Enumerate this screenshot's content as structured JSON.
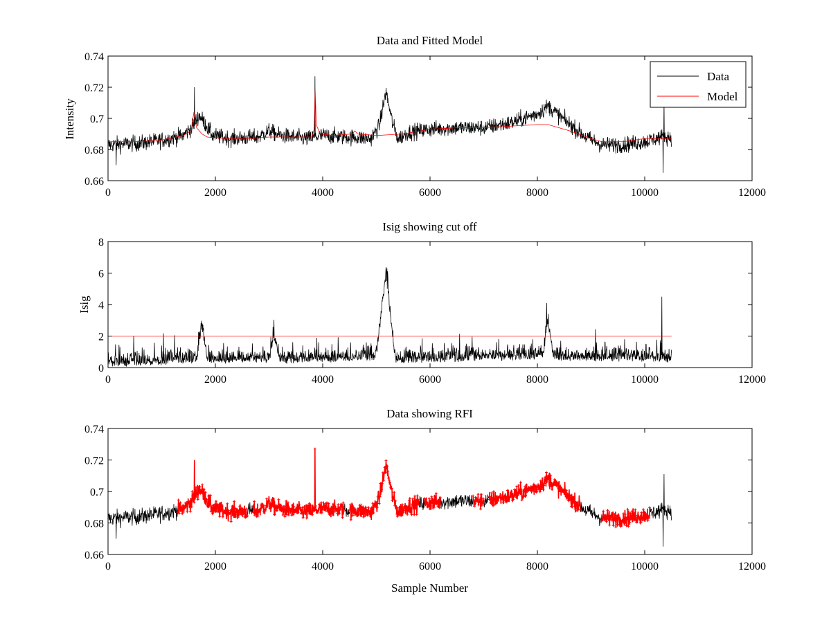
{
  "chart_data": [
    {
      "type": "line",
      "title": "Data and Fitted Model",
      "xlabel": "",
      "ylabel": "Intensity",
      "xlim": [
        0,
        12000
      ],
      "ylim": [
        0.66,
        0.74
      ],
      "xticks": [
        0,
        2000,
        4000,
        6000,
        8000,
        10000,
        12000
      ],
      "xtick_labels": [
        "0",
        "2000",
        "4000",
        "6000",
        "8000",
        "10000",
        "12000"
      ],
      "yticks": [
        0.66,
        0.68,
        0.7,
        0.72,
        0.74
      ],
      "ytick_labels": [
        "0.66",
        "0.68",
        "0.7",
        "0.72",
        "0.74"
      ],
      "grid": false,
      "legend": {
        "position": "top-right",
        "entries": [
          {
            "label": "Data",
            "color": "#000000"
          },
          {
            "label": "Model",
            "color": "#ff0000"
          }
        ]
      },
      "series": [
        {
          "name": "Data",
          "color": "#000000",
          "kind": "noisy",
          "x_range": [
            0,
            10500
          ],
          "noise_amplitude": 0.0055,
          "baseline": [
            [
              0,
              0.683
            ],
            [
              600,
              0.684
            ],
            [
              1000,
              0.686
            ],
            [
              1400,
              0.689
            ],
            [
              1560,
              0.694
            ],
            [
              1700,
              0.702
            ],
            [
              1800,
              0.697
            ],
            [
              1950,
              0.689
            ],
            [
              2300,
              0.687
            ],
            [
              2800,
              0.688
            ],
            [
              3000,
              0.692
            ],
            [
              3200,
              0.689
            ],
            [
              3700,
              0.687
            ],
            [
              3850,
              0.688
            ],
            [
              4000,
              0.689
            ],
            [
              4500,
              0.688
            ],
            [
              4900,
              0.687
            ],
            [
              5050,
              0.695
            ],
            [
              5180,
              0.717
            ],
            [
              5300,
              0.697
            ],
            [
              5400,
              0.687
            ],
            [
              5600,
              0.691
            ],
            [
              6000,
              0.693
            ],
            [
              6500,
              0.694
            ],
            [
              7000,
              0.694
            ],
            [
              7500,
              0.697
            ],
            [
              8000,
              0.703
            ],
            [
              8200,
              0.708
            ],
            [
              8500,
              0.699
            ],
            [
              8900,
              0.688
            ],
            [
              9200,
              0.683
            ],
            [
              9600,
              0.683
            ],
            [
              10000,
              0.685
            ],
            [
              10300,
              0.688
            ],
            [
              10500,
              0.688
            ]
          ],
          "spikes": [
            [
              1610,
              0.72
            ],
            [
              3855,
              0.727
            ],
            [
              10340,
              0.665
            ],
            [
              10360,
              0.711
            ],
            [
              150,
              0.67
            ]
          ]
        },
        {
          "name": "Model",
          "color": "#ff0000",
          "points": [
            [
              0,
              0.685
            ],
            [
              500,
              0.685
            ],
            [
              1000,
              0.686
            ],
            [
              1400,
              0.689
            ],
            [
              1550,
              0.692
            ],
            [
              1600,
              0.704
            ],
            [
              1650,
              0.694
            ],
            [
              1750,
              0.69
            ],
            [
              1850,
              0.688
            ],
            [
              2200,
              0.687
            ],
            [
              2600,
              0.687
            ],
            [
              3000,
              0.688
            ],
            [
              3500,
              0.688
            ],
            [
              3800,
              0.688
            ],
            [
              3840,
              0.693
            ],
            [
              3860,
              0.718
            ],
            [
              3880,
              0.696
            ],
            [
              3950,
              0.69
            ],
            [
              4200,
              0.689
            ],
            [
              4550,
              0.69
            ],
            [
              4600,
              0.692
            ],
            [
              4650,
              0.69
            ],
            [
              5000,
              0.689
            ],
            [
              5500,
              0.69
            ],
            [
              6000,
              0.693
            ],
            [
              6500,
              0.694
            ],
            [
              7000,
              0.694
            ],
            [
              7500,
              0.695
            ],
            [
              8000,
              0.696
            ],
            [
              8200,
              0.696
            ],
            [
              8600,
              0.692
            ],
            [
              9000,
              0.687
            ],
            [
              9200,
              0.685
            ],
            [
              9600,
              0.685
            ],
            [
              10000,
              0.687
            ],
            [
              10500,
              0.687
            ]
          ]
        }
      ]
    },
    {
      "type": "line",
      "title": "Isig showing cut off",
      "xlabel": "",
      "ylabel": "Isig",
      "xlim": [
        0,
        12000
      ],
      "ylim": [
        0,
        8
      ],
      "xticks": [
        0,
        2000,
        4000,
        6000,
        8000,
        10000,
        12000
      ],
      "xtick_labels": [
        "0",
        "2000",
        "4000",
        "6000",
        "8000",
        "10000",
        "12000"
      ],
      "yticks": [
        0,
        2,
        4,
        6,
        8
      ],
      "ytick_labels": [
        "0",
        "2",
        "4",
        "6",
        "8"
      ],
      "grid": false,
      "series": [
        {
          "name": "Isig",
          "color": "#000000",
          "kind": "abs-noise",
          "x_range": [
            0,
            10500
          ],
          "noise_amplitude": 0.85,
          "envelope": [
            [
              0,
              0.0
            ],
            [
              1650,
              0.2
            ],
            [
              1750,
              2.4
            ],
            [
              1850,
              0.2
            ],
            [
              3000,
              0.3
            ],
            [
              3100,
              1.6
            ],
            [
              3200,
              0.2
            ],
            [
              5000,
              0.4
            ],
            [
              5100,
              3.5
            ],
            [
              5180,
              5.6
            ],
            [
              5260,
              3.0
            ],
            [
              5350,
              0.2
            ],
            [
              8100,
              0.5
            ],
            [
              8200,
              2.6
            ],
            [
              8300,
              0.4
            ],
            [
              10500,
              0.3
            ]
          ],
          "spikes": [
            [
              10320,
              4.5
            ],
            [
              5200,
              6.3
            ],
            [
              8170,
              4.1
            ]
          ]
        },
        {
          "name": "Cut off",
          "color": "#ff0000",
          "points": [
            [
              0,
              2
            ],
            [
              10500,
              2
            ]
          ]
        }
      ]
    },
    {
      "type": "scatter",
      "title": "Data showing RFI",
      "xlabel": "Sample Number",
      "ylabel": "",
      "xlim": [
        0,
        12000
      ],
      "ylim": [
        0.66,
        0.74
      ],
      "xticks": [
        0,
        2000,
        4000,
        6000,
        8000,
        10000,
        12000
      ],
      "xtick_labels": [
        "0",
        "2000",
        "4000",
        "6000",
        "8000",
        "10000",
        "12000"
      ],
      "yticks": [
        0.66,
        0.68,
        0.7,
        0.72,
        0.74
      ],
      "ytick_labels": [
        "0.66",
        "0.68",
        "0.7",
        "0.72",
        "0.74"
      ],
      "grid": false,
      "series": [
        {
          "name": "Data",
          "color": "#000000",
          "kind": "noisy-ref",
          "ref": 0
        },
        {
          "name": "RFI",
          "color": "#ff0000",
          "marker": "+",
          "x_ranges": [
            [
              1300,
              2600
            ],
            [
              2700,
              4400
            ],
            [
              4500,
              5800
            ],
            [
              5900,
              6200
            ],
            [
              6800,
              7000
            ],
            [
              7100,
              8800
            ],
            [
              9200,
              10100
            ]
          ]
        }
      ]
    }
  ]
}
